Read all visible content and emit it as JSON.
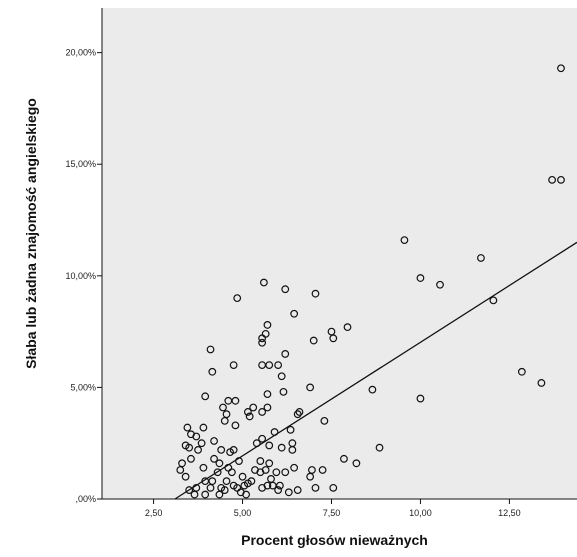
{
  "chart_data": {
    "type": "scatter",
    "xlabel": "Procent głosów nieważnych",
    "ylabel": "Słaba lub żadna znajomość angielskiego",
    "xlim": [
      1.05,
      14.4
    ],
    "ylim": [
      0,
      0.22
    ],
    "x_ticks": [
      {
        "value": 2.5,
        "label": "2,50"
      },
      {
        "value": 5.0,
        "label": "5,00"
      },
      {
        "value": 7.5,
        "label": "7,50"
      },
      {
        "value": 10.0,
        "label": "10,00"
      },
      {
        "value": 12.5,
        "label": "12,50"
      }
    ],
    "y_ticks": [
      {
        "value": 0.0,
        "label": ",00%"
      },
      {
        "value": 0.05,
        "label": "5,00%"
      },
      {
        "value": 0.1,
        "label": "10,00%"
      },
      {
        "value": 0.15,
        "label": "15,00%"
      },
      {
        "value": 0.2,
        "label": "20,00%"
      }
    ],
    "grid": false,
    "background_color": "#ebebeb",
    "marker_color": "#111111",
    "fit_line": {
      "x1": 3.1,
      "y1": 0.0,
      "x2": 14.4,
      "y2": 0.115
    },
    "points": [
      [
        13.95,
        0.193
      ],
      [
        13.7,
        0.143
      ],
      [
        13.95,
        0.143
      ],
      [
        9.55,
        0.116
      ],
      [
        11.7,
        0.108
      ],
      [
        10.0,
        0.099
      ],
      [
        10.55,
        0.096
      ],
      [
        12.05,
        0.089
      ],
      [
        12.85,
        0.057
      ],
      [
        13.4,
        0.052
      ],
      [
        10.0,
        0.045
      ],
      [
        8.65,
        0.049
      ],
      [
        8.85,
        0.023
      ],
      [
        8.2,
        0.016
      ],
      [
        7.85,
        0.018
      ],
      [
        7.95,
        0.077
      ],
      [
        7.5,
        0.075
      ],
      [
        7.55,
        0.072
      ],
      [
        7.3,
        0.035
      ],
      [
        7.55,
        0.005
      ],
      [
        7.05,
        0.092
      ],
      [
        7.0,
        0.071
      ],
      [
        6.9,
        0.05
      ],
      [
        6.95,
        0.013
      ],
      [
        7.25,
        0.013
      ],
      [
        7.05,
        0.005
      ],
      [
        6.9,
        0.01
      ],
      [
        6.45,
        0.083
      ],
      [
        6.6,
        0.039
      ],
      [
        6.55,
        0.038
      ],
      [
        6.35,
        0.031
      ],
      [
        6.4,
        0.025
      ],
      [
        6.4,
        0.022
      ],
      [
        6.45,
        0.014
      ],
      [
        6.55,
        0.004
      ],
      [
        6.3,
        0.003
      ],
      [
        6.2,
        0.094
      ],
      [
        6.2,
        0.065
      ],
      [
        6.0,
        0.06
      ],
      [
        6.1,
        0.055
      ],
      [
        6.15,
        0.048
      ],
      [
        6.1,
        0.023
      ],
      [
        6.2,
        0.012
      ],
      [
        6.05,
        0.006
      ],
      [
        6.0,
        0.004
      ],
      [
        5.9,
        0.03
      ],
      [
        5.95,
        0.012
      ],
      [
        5.85,
        0.006
      ],
      [
        5.7,
        0.078
      ],
      [
        5.65,
        0.074
      ],
      [
        5.55,
        0.072
      ],
      [
        5.55,
        0.07
      ],
      [
        5.75,
        0.06
      ],
      [
        5.7,
        0.047
      ],
      [
        5.7,
        0.041
      ],
      [
        5.75,
        0.024
      ],
      [
        5.75,
        0.016
      ],
      [
        5.65,
        0.013
      ],
      [
        5.8,
        0.009
      ],
      [
        5.7,
        0.006
      ],
      [
        5.55,
        0.005
      ],
      [
        5.6,
        0.097
      ],
      [
        5.55,
        0.06
      ],
      [
        5.55,
        0.039
      ],
      [
        5.55,
        0.027
      ],
      [
        5.5,
        0.017
      ],
      [
        5.5,
        0.012
      ],
      [
        5.35,
        0.013
      ],
      [
        5.4,
        0.025
      ],
      [
        5.3,
        0.041
      ],
      [
        5.2,
        0.037
      ],
      [
        5.25,
        0.008
      ],
      [
        5.15,
        0.039
      ],
      [
        5.0,
        0.01
      ],
      [
        5.05,
        0.006
      ],
      [
        4.95,
        0.003
      ],
      [
        5.1,
        0.002
      ],
      [
        4.85,
        0.09
      ],
      [
        4.75,
        0.06
      ],
      [
        4.8,
        0.044
      ],
      [
        4.8,
        0.033
      ],
      [
        4.75,
        0.022
      ],
      [
        4.9,
        0.017
      ],
      [
        4.7,
        0.012
      ],
      [
        4.75,
        0.006
      ],
      [
        4.85,
        0.005
      ],
      [
        4.6,
        0.044
      ],
      [
        4.55,
        0.038
      ],
      [
        4.5,
        0.035
      ],
      [
        4.55,
        0.008
      ],
      [
        4.5,
        0.004
      ],
      [
        4.45,
        0.041
      ],
      [
        4.4,
        0.022
      ],
      [
        4.35,
        0.016
      ],
      [
        4.3,
        0.012
      ],
      [
        4.4,
        0.005
      ],
      [
        4.35,
        0.002
      ],
      [
        4.15,
        0.057
      ],
      [
        4.1,
        0.067
      ],
      [
        4.2,
        0.026
      ],
      [
        4.2,
        0.018
      ],
      [
        4.15,
        0.008
      ],
      [
        4.1,
        0.005
      ],
      [
        3.95,
        0.046
      ],
      [
        3.9,
        0.032
      ],
      [
        3.85,
        0.025
      ],
      [
        3.9,
        0.014
      ],
      [
        3.95,
        0.008
      ],
      [
        3.95,
        0.002
      ],
      [
        3.7,
        0.028
      ],
      [
        3.75,
        0.022
      ],
      [
        3.7,
        0.005
      ],
      [
        3.65,
        0.002
      ],
      [
        3.55,
        0.029
      ],
      [
        3.5,
        0.023
      ],
      [
        3.55,
        0.018
      ],
      [
        3.45,
        0.032
      ],
      [
        3.4,
        0.024
      ],
      [
        3.4,
        0.01
      ],
      [
        3.5,
        0.004
      ],
      [
        3.3,
        0.016
      ],
      [
        3.25,
        0.013
      ],
      [
        4.65,
        0.021
      ],
      [
        5.15,
        0.007
      ],
      [
        4.6,
        0.014
      ]
    ]
  }
}
